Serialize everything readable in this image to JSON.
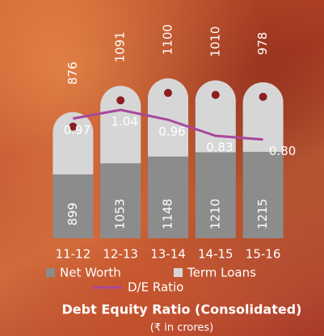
{
  "chart_data": {
    "type": "bar",
    "stacked": true,
    "title": "Debt Equity Ratio (Consolidated)",
    "subtitle": "(₹ in crores)",
    "categories": [
      "11-12",
      "12-13",
      "13-14",
      "14-15",
      "15-16"
    ],
    "series": [
      {
        "name": "Net Worth",
        "color": "#8c8c8c",
        "values": [
          899,
          1053,
          1148,
          1210,
          1215
        ]
      },
      {
        "name": "Term Loans",
        "color": "#d6d6d6",
        "values": [
          876,
          1091,
          1100,
          1010,
          978
        ]
      },
      {
        "name": "D/E Ratio",
        "color": "#a8479a",
        "type": "line",
        "axis": "y2",
        "values": [
          0.97,
          1.04,
          0.96,
          0.83,
          0.8
        ],
        "value_labels": [
          "0.97",
          "1.04",
          "0.96",
          "0.83",
          "0.80"
        ]
      }
    ],
    "ylim": [
      0,
      3350
    ],
    "y2lim": [
      0,
      1.93
    ]
  }
}
